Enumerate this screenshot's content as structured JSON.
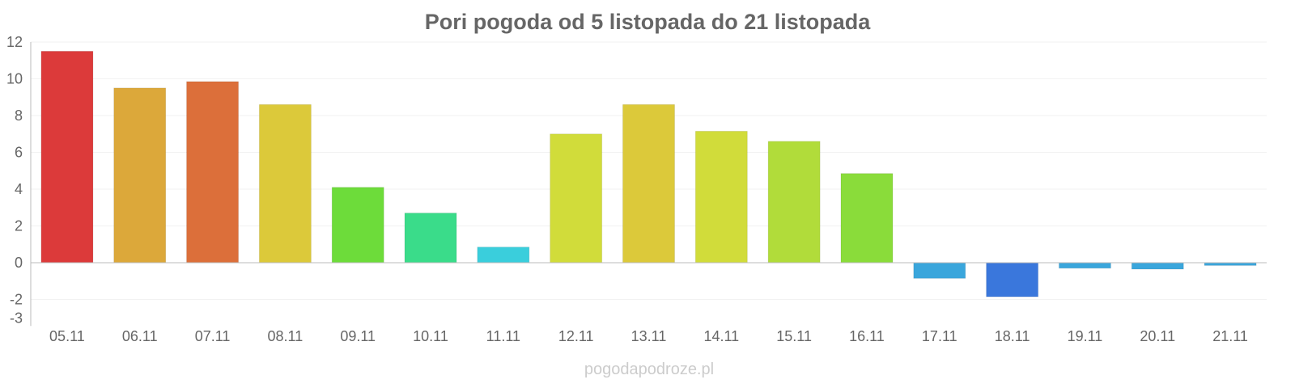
{
  "chart_data": {
    "type": "bar",
    "title": "Pori pogoda od 5 listopada do 21 listopada",
    "xlabel": "",
    "ylabel": "",
    "categories": [
      "05.11",
      "06.11",
      "07.11",
      "08.11",
      "09.11",
      "10.11",
      "11.11",
      "12.11",
      "13.11",
      "14.11",
      "15.11",
      "16.11",
      "17.11",
      "18.11",
      "19.11",
      "20.11",
      "21.11"
    ],
    "values": [
      11.5,
      9.5,
      9.85,
      8.6,
      4.1,
      2.7,
      0.85,
      7.0,
      8.6,
      7.15,
      6.6,
      4.85,
      -0.85,
      -1.85,
      -0.3,
      -0.35,
      -0.15
    ],
    "colors": [
      "#dc3a3a",
      "#dca83a",
      "#dc6f3a",
      "#dcc93a",
      "#6ddc3a",
      "#3adc8a",
      "#3acedc",
      "#d1dc3a",
      "#dcc93a",
      "#d1dc3a",
      "#b1dc3a",
      "#8adc3a",
      "#3aa6dc",
      "#3a77dc",
      "#3aa6dc",
      "#3aa6dc",
      "#3aa6dc"
    ],
    "yticks": [
      12,
      10,
      8,
      6,
      4,
      2,
      0,
      -2,
      -3
    ],
    "ylim": [
      -3,
      12
    ],
    "grid": true,
    "legend": "none"
  },
  "watermark": "pogodapodroze.pl"
}
